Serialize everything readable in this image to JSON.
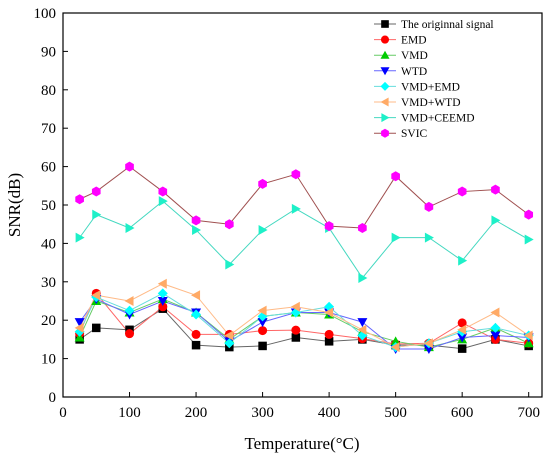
{
  "chart_data": {
    "type": "line",
    "xlabel": "Temperature(°C)",
    "ylabel": "SNR(dB)",
    "xlim": [
      0,
      720
    ],
    "ylim": [
      0,
      100
    ],
    "x_ticks": [
      0,
      100,
      200,
      300,
      400,
      500,
      600,
      700
    ],
    "y_ticks": [
      0,
      10,
      20,
      30,
      40,
      50,
      60,
      70,
      80,
      90,
      100
    ],
    "x": [
      25,
      50,
      100,
      150,
      200,
      250,
      300,
      350,
      400,
      450,
      500,
      550,
      600,
      650,
      700
    ],
    "grid": false,
    "legend_position": "top-right",
    "series": [
      {
        "name": "The originnal signal",
        "color": "#000000",
        "marker": "square",
        "values": [
          15,
          18,
          17.5,
          23,
          13.5,
          13,
          13.3,
          15.5,
          14.5,
          15,
          13.5,
          13.5,
          12.6,
          15,
          13.3
        ]
      },
      {
        "name": "EMD",
        "color": "#ff0000",
        "marker": "circle",
        "values": [
          16.5,
          27,
          16.5,
          23.5,
          16.3,
          16.3,
          17.3,
          17.4,
          16.3,
          15.2,
          13.8,
          14,
          19.3,
          15,
          14
        ]
      },
      {
        "name": "VMD",
        "color": "#00cc00",
        "marker": "triangle-up",
        "values": [
          15.5,
          25,
          22,
          25.5,
          22,
          15,
          21,
          22,
          21.5,
          17,
          14.5,
          13,
          15,
          18,
          14
        ]
      },
      {
        "name": "WTD",
        "color": "#0000ff",
        "marker": "triangle-down",
        "values": [
          19.5,
          25.5,
          21.5,
          25,
          22,
          14.5,
          19.5,
          22,
          22,
          19.5,
          12.5,
          12.5,
          15.5,
          16,
          15.5
        ]
      },
      {
        "name": "VMD+EMD",
        "color": "#00ffff",
        "marker": "diamond",
        "values": [
          17,
          26,
          22.5,
          27,
          21.5,
          14,
          21,
          22,
          23.5,
          16,
          13,
          14,
          17,
          18,
          16
        ]
      },
      {
        "name": "VMD+WTD",
        "color": "#ffaa66",
        "marker": "triangle-left",
        "values": [
          18,
          26.5,
          25,
          29.5,
          26.5,
          16,
          22.5,
          23.5,
          22,
          17.5,
          13,
          14,
          17.5,
          22,
          16
        ]
      },
      {
        "name": "VMD+CEEMD",
        "color": "#1ef0c8",
        "marker": "triangle-right",
        "values": [
          41.5,
          47.5,
          44,
          51,
          43.5,
          34.5,
          43.5,
          49,
          44,
          31,
          41.5,
          41.5,
          35.5,
          46,
          41
        ]
      },
      {
        "name": "SVIC",
        "color": "#ff00ff",
        "marker": "hexagon",
        "values": [
          51.5,
          53.5,
          60,
          53.5,
          46,
          45,
          55.5,
          58,
          44.5,
          44,
          57.5,
          49.5,
          53.5,
          54,
          47.5
        ]
      }
    ]
  }
}
